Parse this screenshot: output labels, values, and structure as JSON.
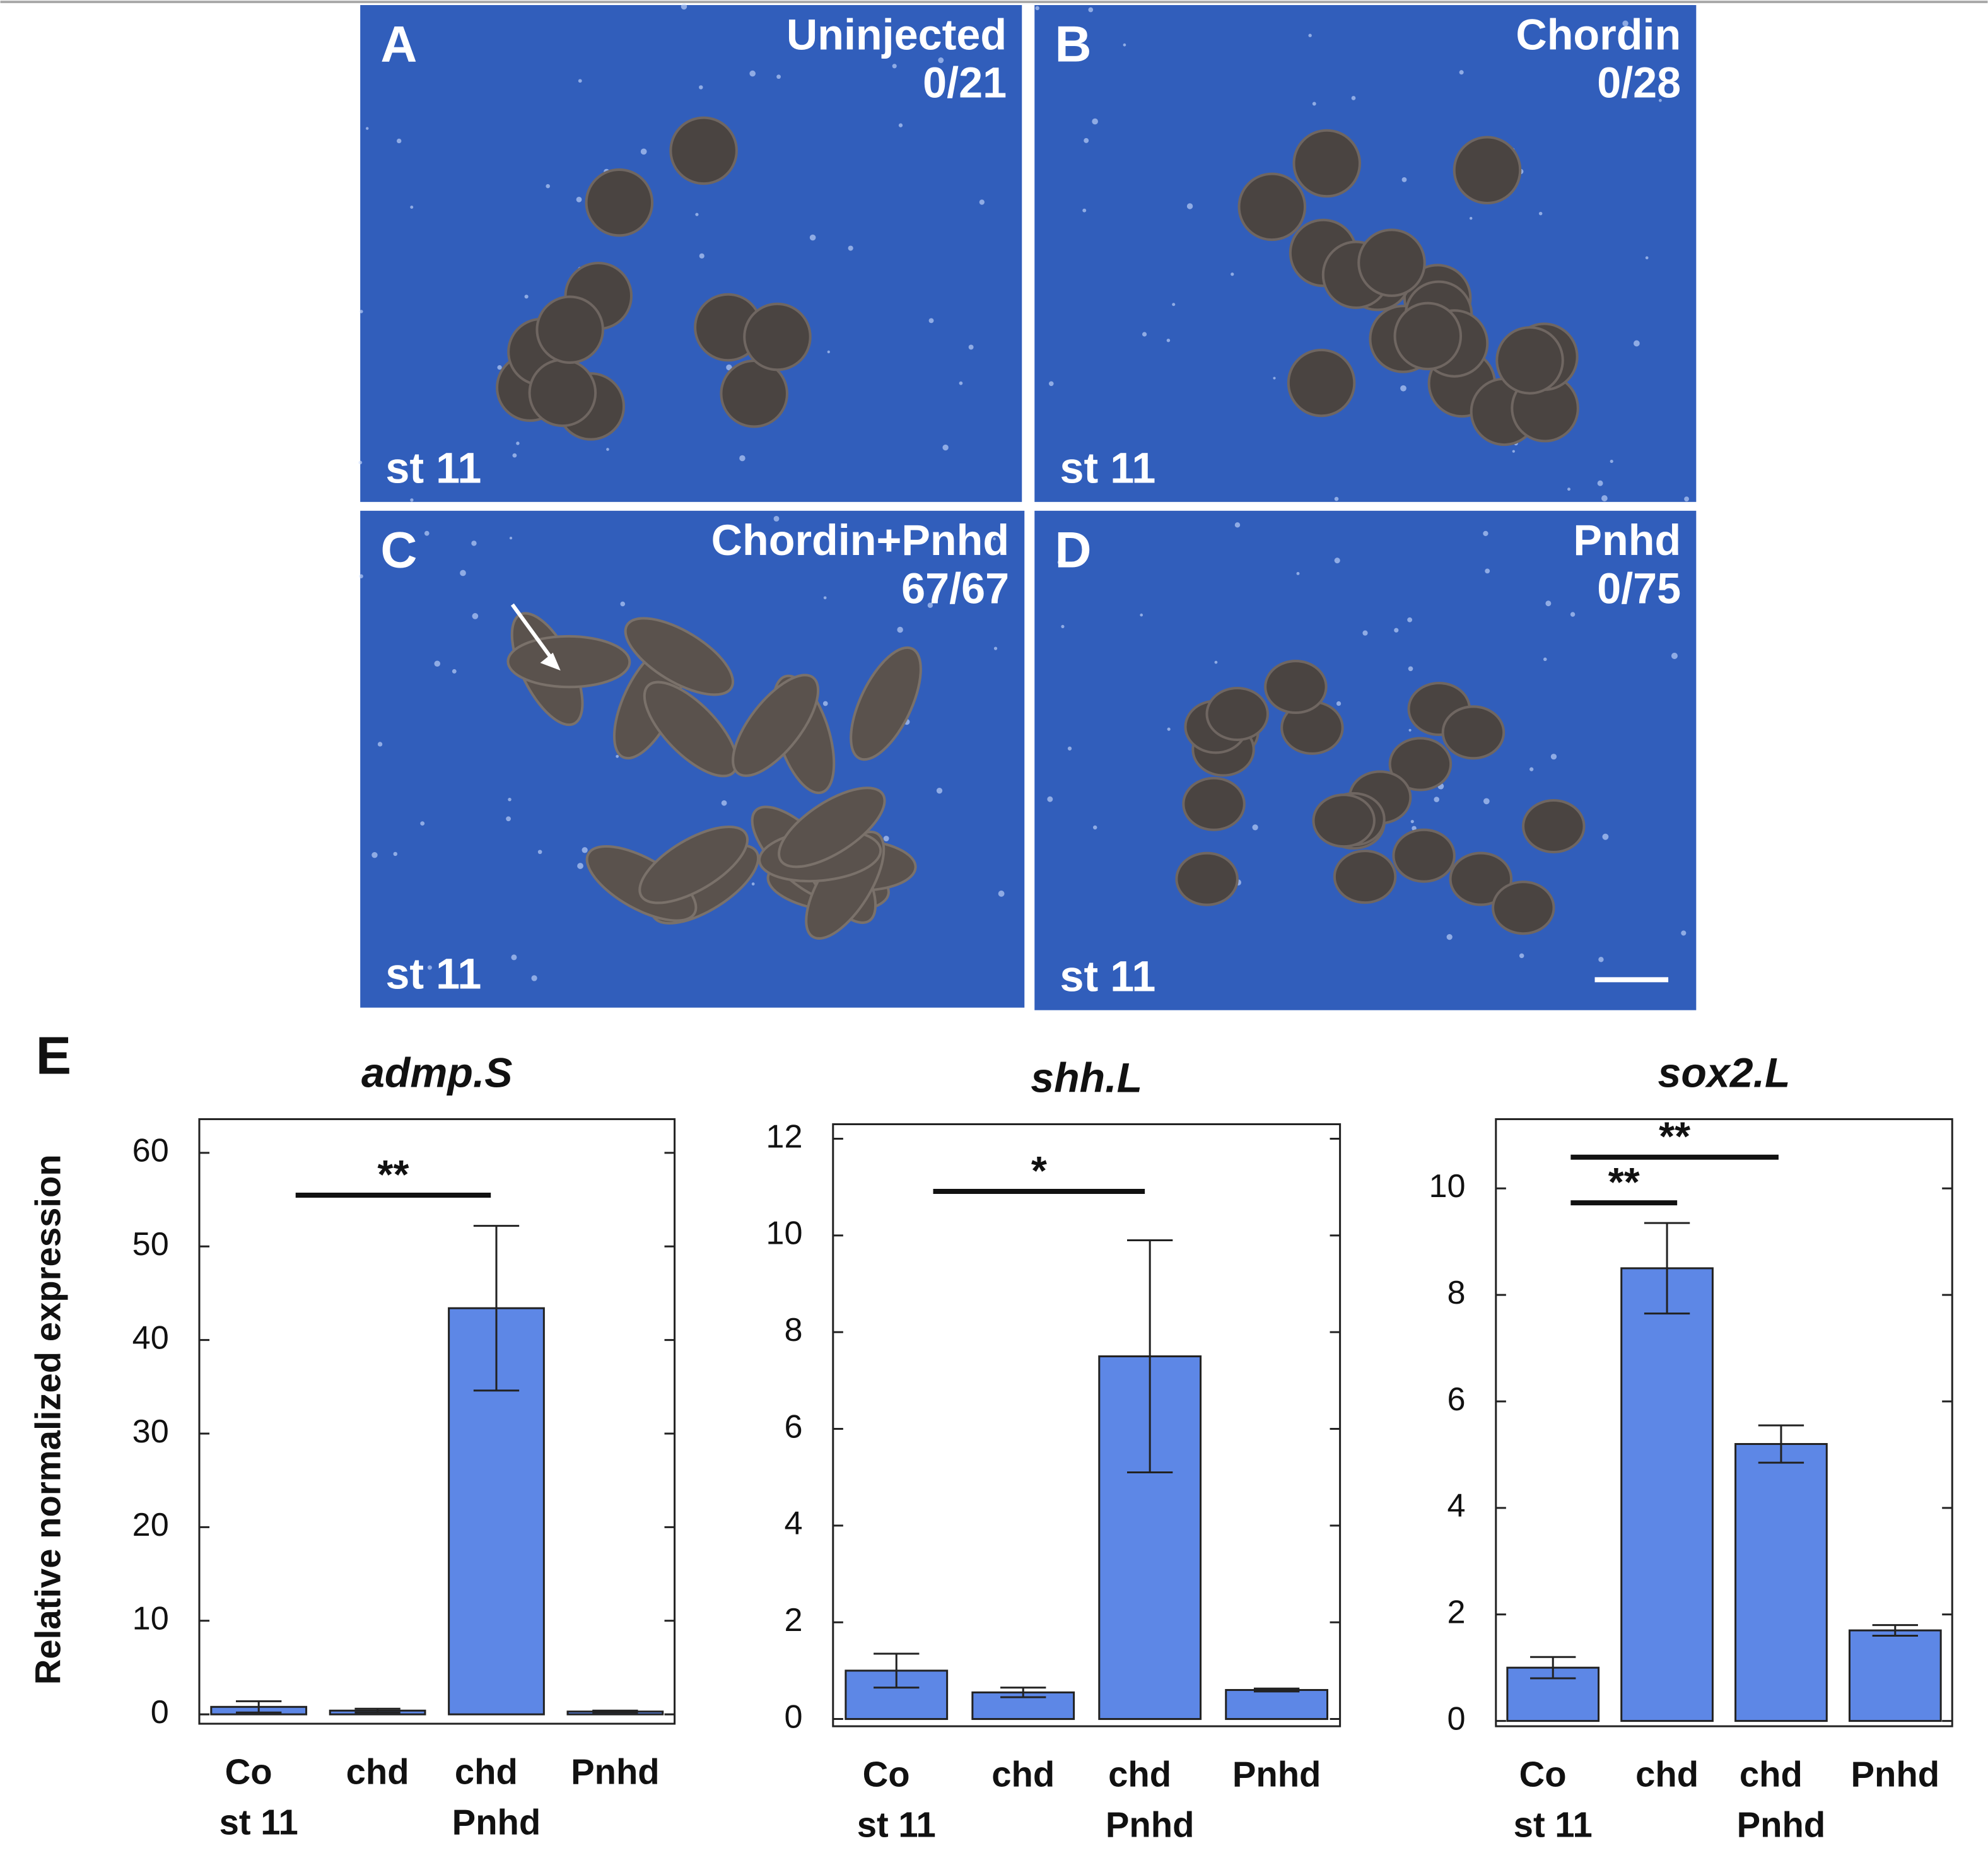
{
  "panels": [
    {
      "letter": "A",
      "label": [
        "Uninjected",
        "0/21"
      ],
      "stage": "st 11"
    },
    {
      "letter": "B",
      "label": [
        "Chordin",
        "0/28"
      ],
      "stage": "st 11"
    },
    {
      "letter": "C",
      "label": [
        "Chordin+Pnhd",
        "67/67"
      ],
      "stage": "st 11"
    },
    {
      "letter": "D",
      "label": [
        "Pnhd",
        "0/75"
      ],
      "stage": "st 11"
    }
  ],
  "figure_letter": "E",
  "y_label": "Relative normalized expression",
  "chart_data": [
    {
      "type": "bar",
      "title": "admp.S",
      "categories": [
        [
          "Co",
          "st 11"
        ],
        [
          "chd"
        ],
        [
          "chd",
          "Pnhd"
        ],
        [
          "Pnhd"
        ]
      ],
      "values": [
        0.8,
        0.4,
        43.4,
        0.3
      ],
      "errors": [
        0.6,
        0.2,
        8.8,
        0.1
      ],
      "color": "#5d87e6",
      "ylim": [
        -1,
        63.6
      ],
      "yticks": [
        0,
        10,
        20,
        30,
        40,
        50,
        60
      ],
      "significance": [
        {
          "label": "**"
        }
      ]
    },
    {
      "type": "bar",
      "title": "shh.L",
      "categories": [
        [
          "Co",
          "st 11"
        ],
        [
          "chd"
        ],
        [
          "chd",
          "Pnhd"
        ],
        [
          "Pnhd"
        ]
      ],
      "values": [
        1.0,
        0.55,
        7.5,
        0.6
      ],
      "errors": [
        0.35,
        0.1,
        2.4,
        0.03
      ],
      "color": "#5d87e6",
      "ylim": [
        -0.15,
        12.3
      ],
      "yticks": [
        0,
        2,
        4,
        6,
        8,
        10,
        12
      ],
      "significance": [
        {
          "label": "*"
        }
      ]
    },
    {
      "type": "bar",
      "title": "sox2.L",
      "categories": [
        [
          "Co",
          "st 11"
        ],
        [
          "chd"
        ],
        [
          "chd",
          "Pnhd"
        ],
        [
          "Pnhd"
        ]
      ],
      "values": [
        1.0,
        8.5,
        5.2,
        1.7
      ],
      "errors": [
        0.2,
        0.85,
        0.35,
        0.1
      ],
      "color": "#5d87e6",
      "ylim": [
        -0.1,
        11.3
      ],
      "yticks": [
        0,
        2,
        4,
        6,
        8,
        10
      ],
      "significance": [
        {
          "label": "**"
        },
        {
          "label": "**"
        }
      ]
    }
  ]
}
